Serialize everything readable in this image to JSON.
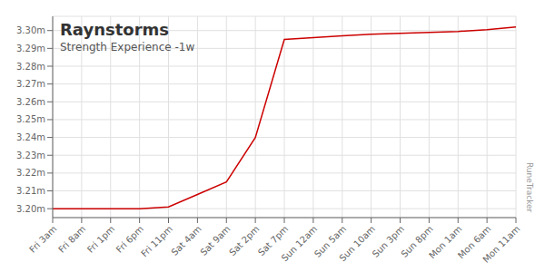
{
  "chart_data": {
    "type": "line",
    "title": "Raynstorms",
    "subtitle": "Strength Experience -1w",
    "annotations": [
      "RuneTracker"
    ],
    "categories": [
      "Fri 3am",
      "Fri 8am",
      "Fri 1pm",
      "Fri 6pm",
      "Fri 11pm",
      "Sat 4am",
      "Sat 9am",
      "Sat 2pm",
      "Sat 7pm",
      "Sun 12am",
      "Sun 5am",
      "Sun 10am",
      "Sun 3pm",
      "Sun 8pm",
      "Mon 1am",
      "Mon 6am",
      "Mon 11am"
    ],
    "values": [
      3.2,
      3.2,
      3.2,
      3.2,
      3.201,
      3.208,
      3.215,
      3.24,
      3.295,
      3.296,
      3.297,
      3.298,
      3.2985,
      3.299,
      3.2995,
      3.3005,
      3.302
    ],
    "color": "#cc0000",
    "ylim": [
      3.195,
      3.308
    ],
    "yticks": [
      {
        "value": 3.2,
        "label": "3.20m"
      },
      {
        "value": 3.21,
        "label": "3.21m"
      },
      {
        "value": 3.22,
        "label": "3.22m"
      },
      {
        "value": 3.23,
        "label": "3.23m"
      },
      {
        "value": 3.24,
        "label": "3.24m"
      },
      {
        "value": 3.25,
        "label": "3.25m"
      },
      {
        "value": 3.26,
        "label": "3.26m"
      },
      {
        "value": 3.27,
        "label": "3.27m"
      },
      {
        "value": 3.28,
        "label": "3.28m"
      },
      {
        "value": 3.29,
        "label": "3.29m"
      },
      {
        "value": 3.3,
        "label": "3.30m"
      }
    ],
    "grid": true
  }
}
